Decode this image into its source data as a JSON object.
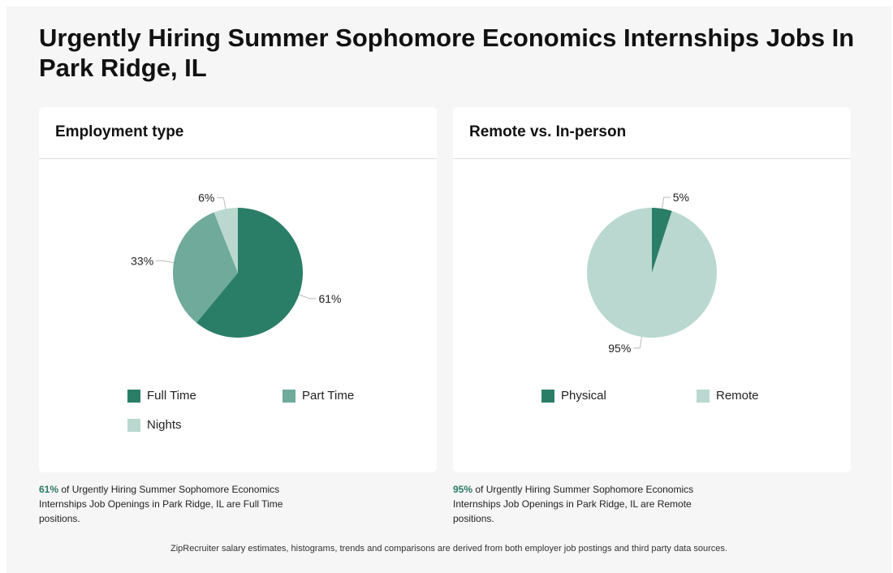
{
  "title": "Urgently Hiring Summer Sophomore Economics Internships Jobs In Park Ridge, IL",
  "chart_data": [
    {
      "type": "pie",
      "title": "Employment type",
      "categories": [
        "Full Time",
        "Part Time",
        "Nights"
      ],
      "values": [
        61,
        33,
        6
      ],
      "value_labels": [
        "61%",
        "33%",
        "6%"
      ],
      "colors": [
        "#2a7e68",
        "#6faa9b",
        "#bad8cf"
      ],
      "legend": "bottom",
      "caption": {
        "highlight": "61%",
        "text": " of Urgently Hiring Summer Sophomore Economics Internships Job Openings in Park Ridge, IL are Full Time positions."
      }
    },
    {
      "type": "pie",
      "title": "Remote vs. In-person",
      "categories": [
        "Physical",
        "Remote"
      ],
      "values": [
        5,
        95
      ],
      "value_labels": [
        "5%",
        "95%"
      ],
      "colors": [
        "#2a7e68",
        "#bad8cf"
      ],
      "legend": "bottom",
      "caption": {
        "highlight": "95%",
        "text": " of Urgently Hiring Summer Sophomore Economics Internships Job Openings in Park Ridge, IL are Remote positions."
      }
    }
  ],
  "footnote": "ZipRecruiter salary estimates, histograms, trends and comparisons are derived from both employer job postings and third party data sources."
}
